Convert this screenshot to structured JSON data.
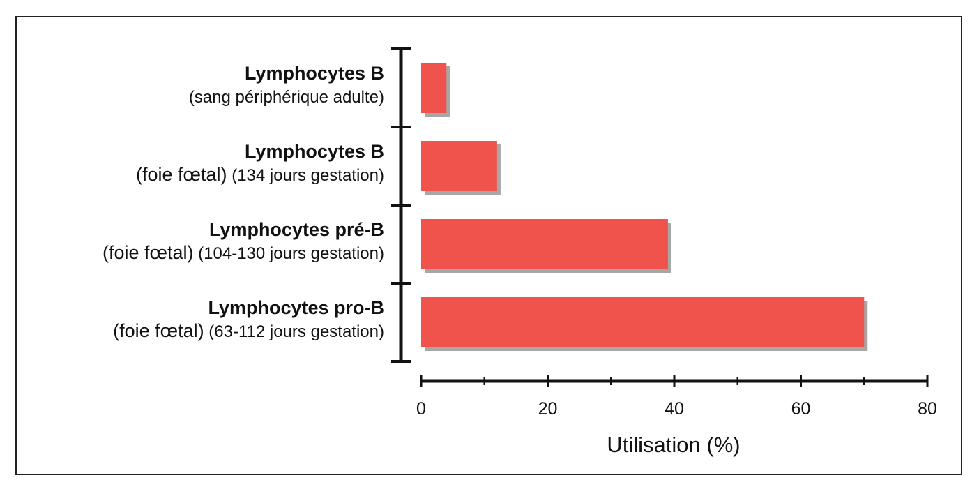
{
  "chart_data": {
    "type": "bar",
    "orientation": "horizontal",
    "title": "",
    "xlabel": "Utilisation (%)",
    "ylabel": "",
    "xlim": [
      0,
      80
    ],
    "grid": false,
    "bar_color": "#f0534c",
    "shadow_color": "#8a8a8a",
    "categories": [
      {
        "title": "Lymphocytes B",
        "sub_prefix": "",
        "sub_rest": "(sang périphérique adulte)"
      },
      {
        "title": "Lymphocytes B",
        "sub_prefix": "(foie fœtal)",
        "sub_rest": "(134 jours gestation)"
      },
      {
        "title": "Lymphocytes pré-B",
        "sub_prefix": "(foie fœtal)",
        "sub_rest": "(104-130 jours gestation)"
      },
      {
        "title": "Lymphocytes pro-B",
        "sub_prefix": "(foie fœtal)",
        "sub_rest": "(63-112 jours gestation)"
      }
    ],
    "values": [
      4,
      12,
      39,
      70
    ],
    "ticks": [
      0,
      20,
      40,
      60,
      80
    ]
  }
}
